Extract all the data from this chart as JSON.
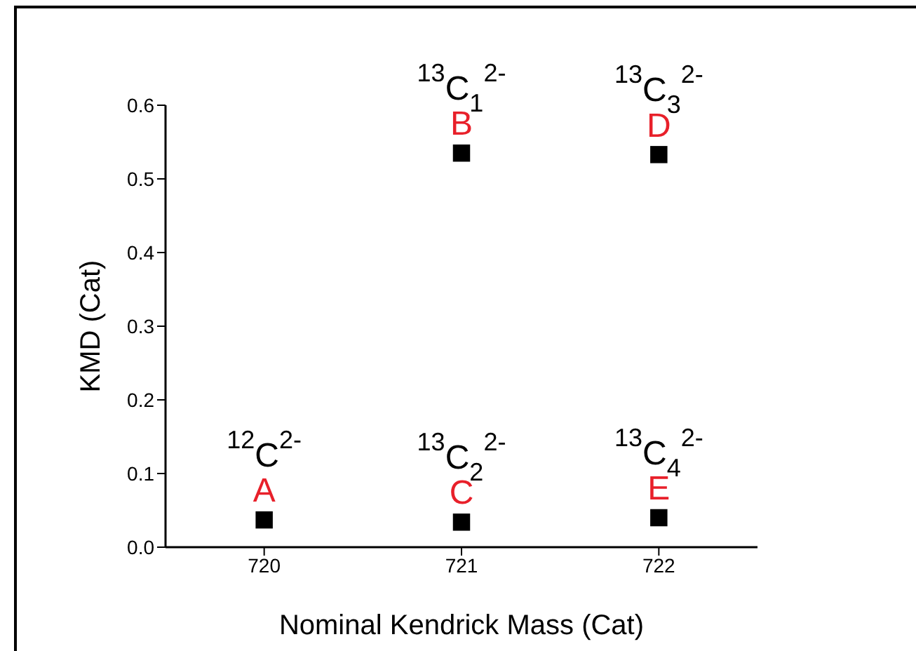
{
  "chart_data": {
    "type": "scatter",
    "xlabel": "Nominal Kendrick Mass (Cat)",
    "ylabel": "KMD (Cat)",
    "x": [
      720,
      721,
      721,
      722,
      722
    ],
    "values": [
      0.037,
      0.535,
      0.034,
      0.533,
      0.04
    ],
    "value_labels": [
      "A",
      "B",
      "C",
      "D",
      "E"
    ],
    "color": "#000000",
    "marker": "square",
    "xlim": [
      719.5,
      722.5
    ],
    "xticks": [
      720,
      721,
      722
    ],
    "ylim": [
      0,
      0.6
    ],
    "yticks": [
      {
        "value": 0,
        "label": "0.0"
      },
      {
        "value": 0.1,
        "label": "0.1"
      },
      {
        "value": 0.2,
        "label": "0.2"
      },
      {
        "value": 0.3,
        "label": "0.3"
      },
      {
        "value": 0.4,
        "label": "0.4"
      },
      {
        "value": 0.5,
        "label": "0.5"
      },
      {
        "value": 0.6,
        "label": "0.6"
      }
    ],
    "grid": false,
    "annotations": [
      {
        "text": "$^{12}$C$^{2-}$",
        "x": 720,
        "y": 0.037
      },
      {
        "text": "$^{13}$C$_{1}$$^{2-}$",
        "x": 721,
        "y": 0.535
      },
      {
        "text": "$^{13}$C$_{2}$$^{2-}$",
        "x": 721,
        "y": 0.034
      },
      {
        "text": "$^{13}$C$_{3}$$^{2-}$",
        "x": 722,
        "y": 0.533
      },
      {
        "text": "$^{13}$C$_{4}$$^{2-}$",
        "x": 722,
        "y": 0.04
      }
    ]
  }
}
